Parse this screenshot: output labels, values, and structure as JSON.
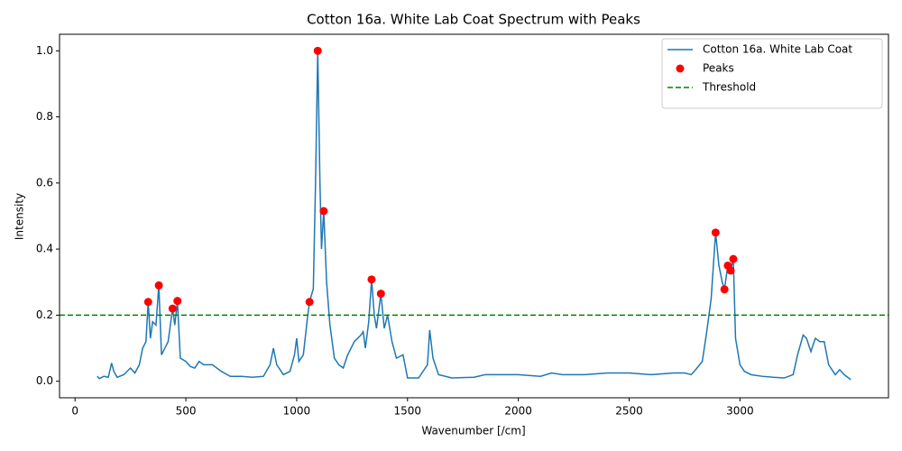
{
  "chart_data": {
    "type": "line",
    "title": "Cotton 16a. White Lab Coat Spectrum with Peaks",
    "x_label": "Wavenumber [/cm]",
    "y_label": "Intensity",
    "xlim": [
      -70,
      3670
    ],
    "ylim": [
      -0.05,
      1.05
    ],
    "xticks": [
      0,
      500,
      1000,
      1500,
      2000,
      2500,
      3000
    ],
    "yticks": [
      {
        "value": 0,
        "label": "0.0"
      },
      {
        "value": 0.2,
        "label": "0.2"
      },
      {
        "value": 0.4,
        "label": "0.4"
      },
      {
        "value": 0.6,
        "label": "0.6"
      },
      {
        "value": 0.8,
        "label": "0.8"
      },
      {
        "value": 1,
        "label": "1.0"
      }
    ],
    "grid": false,
    "legend": "upper right",
    "series": [
      {
        "name": "Cotton 16a. White Lab Coat",
        "type": "line",
        "color": "#1f77b4",
        "x": [
          100,
          110,
          130,
          150,
          165,
          175,
          190,
          220,
          250,
          270,
          290,
          305,
          320,
          330,
          340,
          350,
          365,
          378,
          390,
          405,
          420,
          440,
          450,
          462,
          475,
          500,
          520,
          540,
          560,
          580,
          620,
          660,
          700,
          750,
          800,
          850,
          880,
          895,
          910,
          940,
          970,
          990,
          1000,
          1010,
          1030,
          1050,
          1058,
          1075,
          1085,
          1095,
          1105,
          1112,
          1122,
          1135,
          1150,
          1170,
          1190,
          1210,
          1230,
          1260,
          1290,
          1300,
          1310,
          1325,
          1338,
          1350,
          1360,
          1380,
          1395,
          1410,
          1430,
          1450,
          1480,
          1500,
          1550,
          1590,
          1600,
          1615,
          1640,
          1700,
          1800,
          1850,
          1900,
          2000,
          2100,
          2150,
          2200,
          2300,
          2400,
          2500,
          2600,
          2700,
          2750,
          2780,
          2800,
          2830,
          2850,
          2870,
          2890,
          2905,
          2920,
          2930,
          2945,
          2958,
          2970,
          2980,
          3000,
          3020,
          3050,
          3100,
          3150,
          3200,
          3240,
          3260,
          3285,
          3300,
          3320,
          3340,
          3360,
          3380,
          3400,
          3430,
          3450,
          3470,
          3500
        ],
        "values": [
          0.015,
          0.008,
          0.015,
          0.012,
          0.055,
          0.03,
          0.012,
          0.02,
          0.04,
          0.025,
          0.05,
          0.1,
          0.12,
          0.24,
          0.13,
          0.18,
          0.17,
          0.29,
          0.08,
          0.1,
          0.12,
          0.22,
          0.17,
          0.243,
          0.07,
          0.06,
          0.045,
          0.04,
          0.06,
          0.05,
          0.05,
          0.03,
          0.015,
          0.015,
          0.012,
          0.015,
          0.05,
          0.1,
          0.05,
          0.02,
          0.03,
          0.08,
          0.13,
          0.06,
          0.08,
          0.2,
          0.24,
          0.28,
          0.6,
          1.0,
          0.6,
          0.4,
          0.515,
          0.3,
          0.17,
          0.07,
          0.05,
          0.04,
          0.08,
          0.12,
          0.14,
          0.15,
          0.1,
          0.18,
          0.308,
          0.2,
          0.16,
          0.265,
          0.16,
          0.2,
          0.12,
          0.07,
          0.08,
          0.01,
          0.01,
          0.05,
          0.155,
          0.07,
          0.02,
          0.01,
          0.012,
          0.02,
          0.02,
          0.02,
          0.015,
          0.025,
          0.02,
          0.02,
          0.025,
          0.025,
          0.02,
          0.025,
          0.025,
          0.02,
          0.035,
          0.06,
          0.15,
          0.25,
          0.45,
          0.35,
          0.3,
          0.278,
          0.35,
          0.335,
          0.37,
          0.13,
          0.05,
          0.03,
          0.02,
          0.015,
          0.012,
          0.01,
          0.02,
          0.08,
          0.14,
          0.13,
          0.09,
          0.13,
          0.12,
          0.12,
          0.05,
          0.02,
          0.035,
          0.02,
          0.005
        ]
      },
      {
        "name": "Peaks",
        "type": "scatter",
        "color": "red",
        "x": [
          330,
          378,
          440,
          462,
          1058,
          1095,
          1122,
          1338,
          1380,
          2890,
          2930,
          2945,
          2958,
          2970
        ],
        "values": [
          0.24,
          0.29,
          0.22,
          0.243,
          0.24,
          1.0,
          0.515,
          0.308,
          0.265,
          0.45,
          0.278,
          0.35,
          0.335,
          0.37
        ]
      }
    ],
    "hlines": [
      {
        "name": "Threshold",
        "value": 0.2,
        "color": "green",
        "style": "dashed"
      }
    ]
  }
}
